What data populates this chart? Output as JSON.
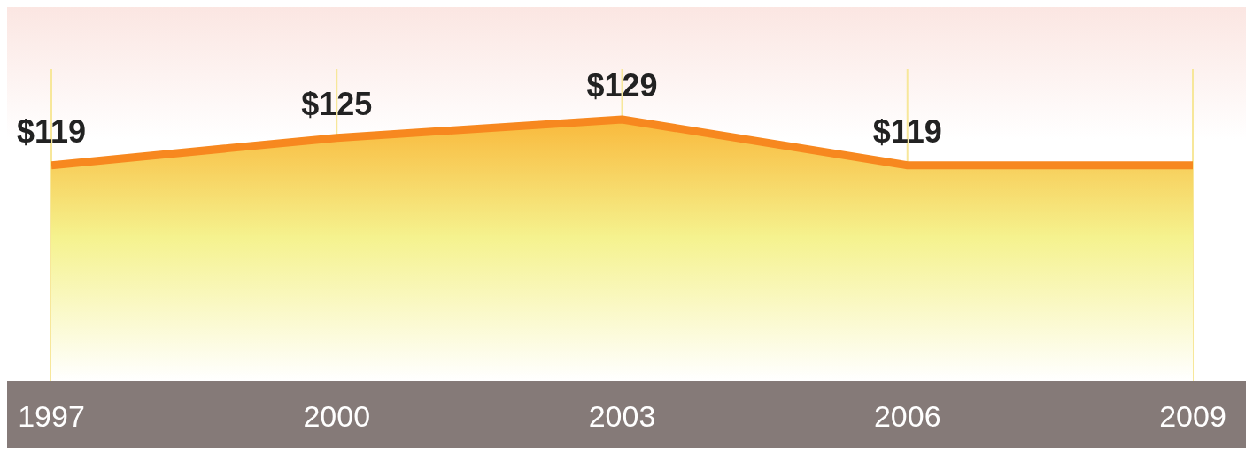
{
  "chart_data": {
    "type": "area",
    "x": [
      1997,
      2000,
      2003,
      2006,
      2009
    ],
    "values": [
      119,
      125,
      129,
      119,
      119
    ],
    "value_labels": [
      "$119",
      "$125",
      "$129",
      "$119",
      null
    ],
    "color": "#f7881f",
    "xlim": [
      1997,
      2009
    ],
    "xticks": [
      1997,
      2000,
      2003,
      2006,
      2009
    ],
    "ylim": [
      72,
      140
    ],
    "grid": "x",
    "marker": "none",
    "line_style": "solid"
  }
}
